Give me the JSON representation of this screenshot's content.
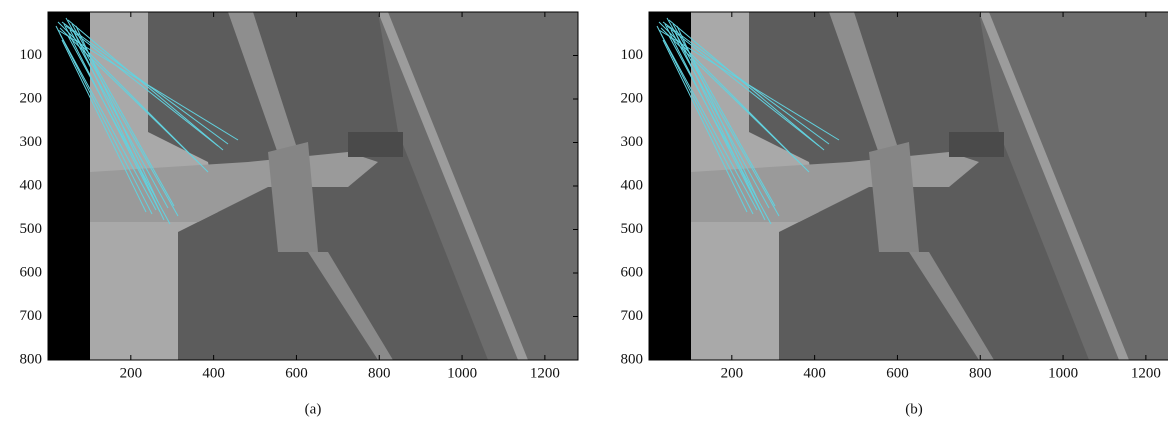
{
  "chart_data": [
    {
      "type": "image",
      "subtitle": "(a)",
      "xlim": [
        0,
        1280
      ],
      "ylim": [
        0,
        800
      ],
      "xticks": [
        200,
        400,
        600,
        800,
        1000,
        1200
      ],
      "yticks": [
        100,
        200,
        300,
        400,
        500,
        600,
        700,
        800
      ]
    },
    {
      "type": "image",
      "subtitle": "(b)",
      "xlim": [
        0,
        1280
      ],
      "ylim": [
        0,
        800
      ],
      "xticks": [
        200,
        400,
        600,
        800,
        1000,
        1200
      ],
      "yticks": [
        100,
        200,
        300,
        400,
        500,
        600,
        700,
        800
      ]
    }
  ]
}
